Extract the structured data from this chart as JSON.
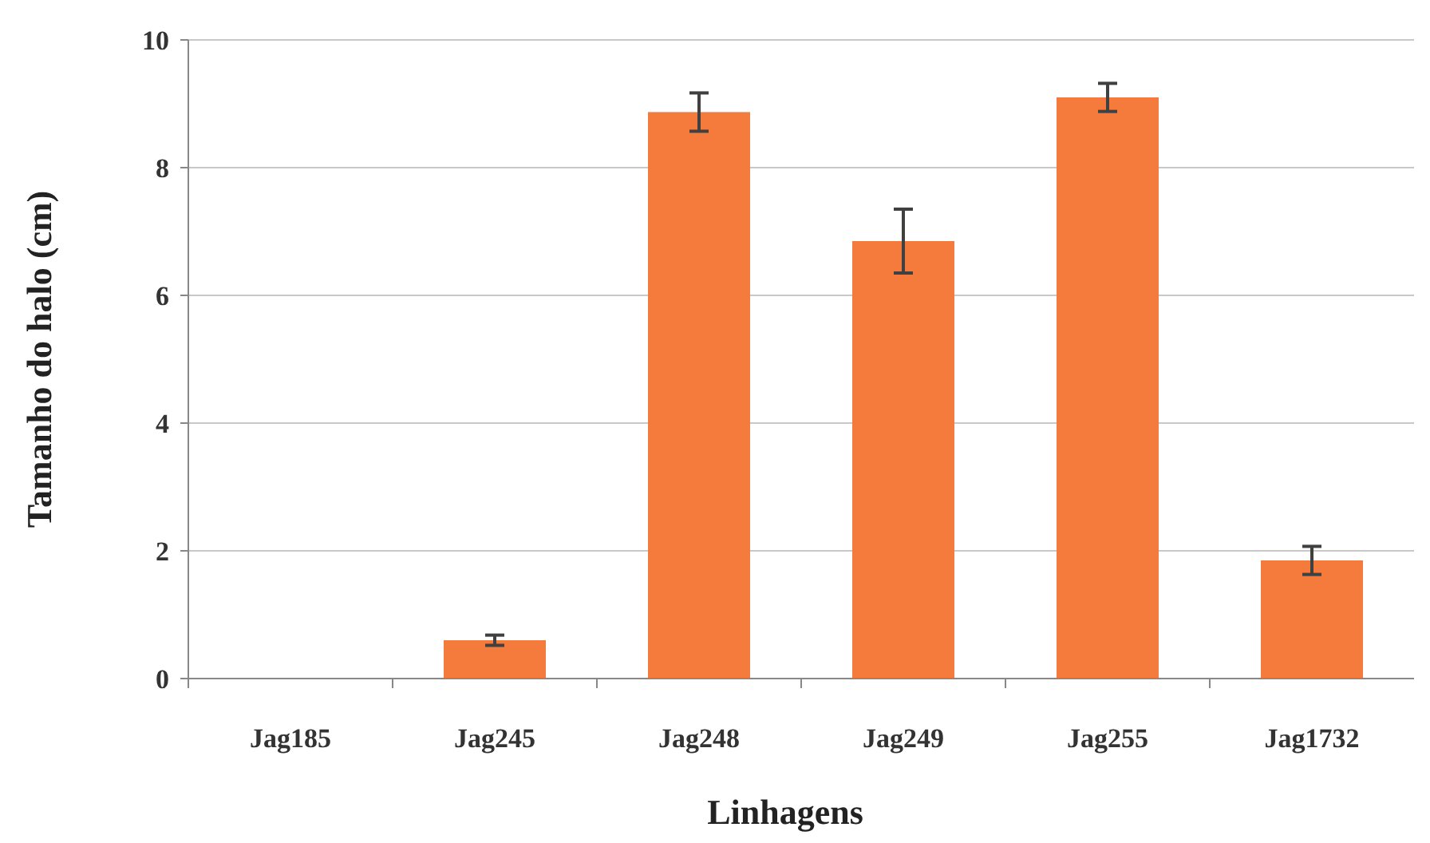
{
  "chart_data": {
    "type": "bar",
    "xlabel": "Linhagens",
    "ylabel": "Tamanho do halo (cm)",
    "categories": [
      "Jag185",
      "Jag245",
      "Jag248",
      "Jag249",
      "Jag255",
      "Jag1732"
    ],
    "values": [
      0,
      0.6,
      8.87,
      6.85,
      9.1,
      1.85
    ],
    "errors": [
      null,
      0.08,
      0.3,
      0.5,
      0.22,
      0.22
    ],
    "color": "#f47b3c",
    "ylim": [
      0,
      10
    ],
    "yticks": [
      0,
      2,
      4,
      6,
      8,
      10
    ],
    "grid": "y"
  }
}
